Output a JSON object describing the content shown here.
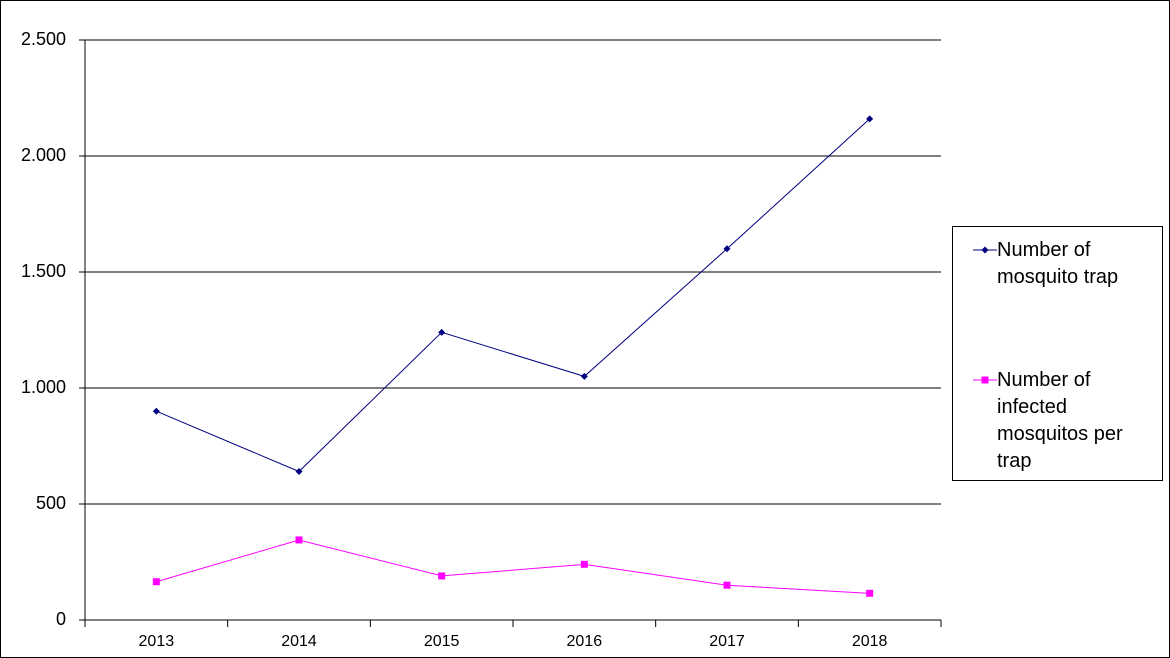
{
  "chart_data": {
    "type": "line",
    "categories": [
      "2013",
      "2014",
      "2015",
      "2016",
      "2017",
      "2018"
    ],
    "series": [
      {
        "name": "Number of mosquito trap",
        "color": "#000080",
        "marker": "diamond",
        "values": [
          900,
          640,
          1240,
          1050,
          1600,
          2160
        ]
      },
      {
        "name": "Number of infected mosquitos per trap",
        "color": "#ff00ff",
        "marker": "square",
        "values": [
          165,
          345,
          190,
          240,
          150,
          115
        ]
      }
    ],
    "ylim": [
      0,
      2500
    ],
    "yticks": [
      0,
      500,
      {
        "value": 1000,
        "label": "1.000"
      },
      {
        "value": 1500,
        "label": "1.500"
      },
      {
        "value": 2000,
        "label": "2.000"
      },
      {
        "value": 2500,
        "label": "2.500"
      }
    ],
    "grid": true,
    "legend": "right"
  }
}
